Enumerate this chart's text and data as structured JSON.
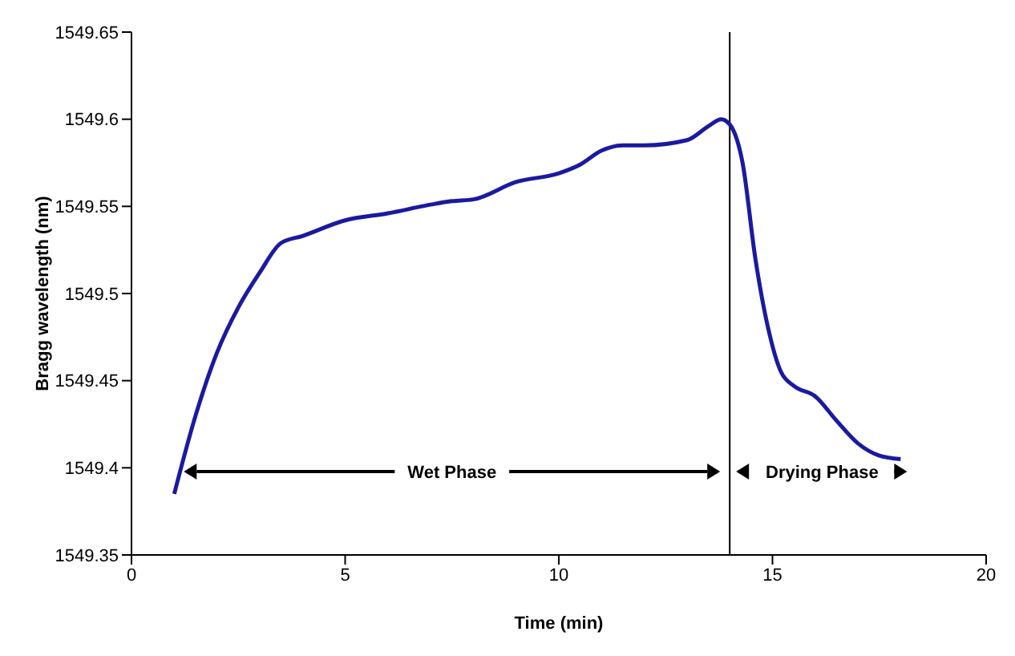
{
  "chart_data": {
    "type": "line",
    "xlabel": "Time (min)",
    "ylabel": "Bragg wavelength (nm)",
    "xlim": [
      0,
      20
    ],
    "xticks": [
      0,
      5,
      10,
      15,
      20
    ],
    "ylim": [
      1549.35,
      1549.65
    ],
    "yticks": [
      1549.35,
      1549.4,
      1549.45,
      1549.5,
      1549.55,
      1549.6,
      1549.65
    ],
    "marker": "none",
    "line_style": "solid",
    "series": [
      {
        "color": "#1a1aa0",
        "x": [
          1,
          1.5,
          2,
          2.5,
          3,
          3.5,
          4,
          5,
          6,
          7,
          7.5,
          8,
          9,
          10,
          10.5,
          11,
          11.5,
          12,
          13,
          13.5,
          13.8,
          14,
          14.3,
          14.6,
          14.9,
          15.2,
          15.5,
          16,
          16.5,
          17,
          17.5,
          18
        ],
        "values": [
          1549.385,
          1549.43,
          1549.466,
          1549.492,
          1549.512,
          1549.529,
          1549.533,
          1549.542,
          1549.546,
          1549.551,
          1549.553,
          1549.554,
          1549.564,
          1549.569,
          1549.574,
          1549.582,
          1549.585,
          1549.585,
          1549.588,
          1549.596,
          1549.6,
          1549.597,
          1549.575,
          1549.52,
          1549.48,
          1549.455,
          1549.447,
          1549.441,
          1549.427,
          1549.414,
          1549.407,
          1549.405
        ]
      }
    ],
    "ref_lines": [
      {
        "axis": "x",
        "value": 14,
        "color": "#000000"
      }
    ],
    "annotations": [
      "Wet Phase",
      "Drying Phase"
    ]
  }
}
